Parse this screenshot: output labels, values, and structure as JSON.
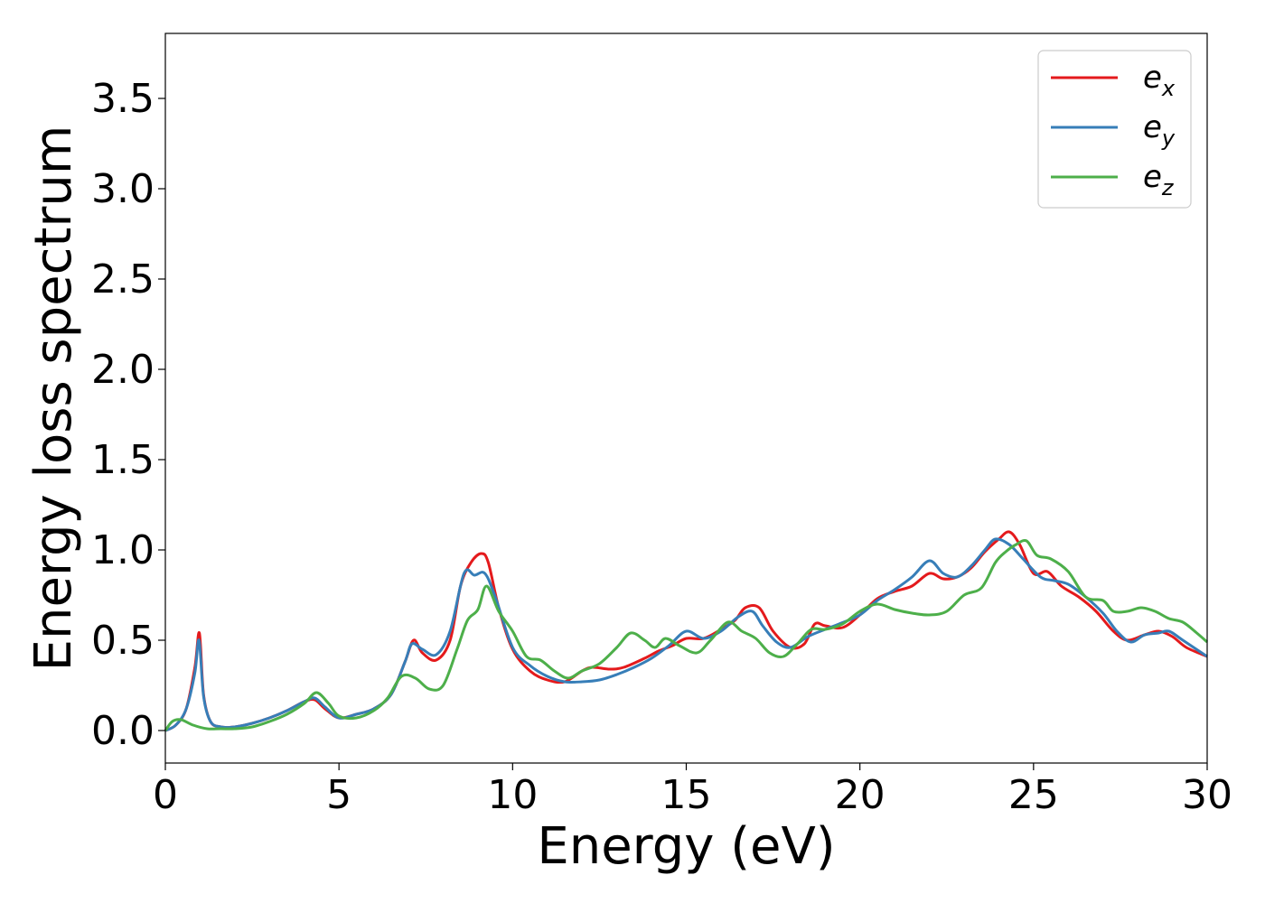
{
  "chart_data": {
    "type": "line",
    "xlabel": "Energy (eV)",
    "ylabel": "Energy loss spectrum",
    "xlim": [
      0,
      30
    ],
    "ylim": [
      -0.18,
      3.86
    ],
    "xticks": [
      0,
      5,
      10,
      15,
      20,
      25,
      30
    ],
    "yticks": [
      0.0,
      0.5,
      1.0,
      1.5,
      2.0,
      2.5,
      3.0,
      3.5
    ],
    "xtick_labels": [
      "0",
      "5",
      "10",
      "15",
      "20",
      "25",
      "30"
    ],
    "ytick_labels": [
      "0.0",
      "0.5",
      "1.0",
      "1.5",
      "2.0",
      "2.5",
      "3.0",
      "3.5"
    ],
    "grid": false,
    "legend_position": "top-right",
    "series": [
      {
        "name": "e_x",
        "legend_base": "e",
        "legend_sub": "x",
        "color": "#e41a1c",
        "points": [
          [
            0,
            0
          ],
          [
            0.3,
            0.03
          ],
          [
            0.6,
            0.12
          ],
          [
            0.85,
            0.35
          ],
          [
            0.98,
            0.54
          ],
          [
            1.1,
            0.2
          ],
          [
            1.3,
            0.05
          ],
          [
            1.6,
            0.02
          ],
          [
            2.0,
            0.02
          ],
          [
            2.5,
            0.04
          ],
          [
            3.0,
            0.07
          ],
          [
            3.5,
            0.11
          ],
          [
            4.0,
            0.16
          ],
          [
            4.3,
            0.17
          ],
          [
            4.6,
            0.12
          ],
          [
            5.0,
            0.07
          ],
          [
            5.5,
            0.09
          ],
          [
            6.0,
            0.12
          ],
          [
            6.5,
            0.2
          ],
          [
            6.9,
            0.38
          ],
          [
            7.15,
            0.5
          ],
          [
            7.4,
            0.43
          ],
          [
            7.8,
            0.39
          ],
          [
            8.2,
            0.5
          ],
          [
            8.5,
            0.8
          ],
          [
            8.8,
            0.93
          ],
          [
            9.1,
            0.98
          ],
          [
            9.3,
            0.93
          ],
          [
            9.6,
            0.68
          ],
          [
            10.0,
            0.45
          ],
          [
            10.5,
            0.33
          ],
          [
            11.0,
            0.28
          ],
          [
            11.5,
            0.27
          ],
          [
            12.0,
            0.33
          ],
          [
            12.3,
            0.35
          ],
          [
            12.8,
            0.34
          ],
          [
            13.2,
            0.35
          ],
          [
            13.8,
            0.4
          ],
          [
            14.2,
            0.44
          ],
          [
            14.6,
            0.47
          ],
          [
            15.0,
            0.51
          ],
          [
            15.5,
            0.51
          ],
          [
            16.0,
            0.56
          ],
          [
            16.4,
            0.61
          ],
          [
            16.7,
            0.68
          ],
          [
            17.1,
            0.68
          ],
          [
            17.5,
            0.55
          ],
          [
            18.0,
            0.46
          ],
          [
            18.4,
            0.48
          ],
          [
            18.7,
            0.59
          ],
          [
            19.0,
            0.58
          ],
          [
            19.5,
            0.57
          ],
          [
            20.0,
            0.64
          ],
          [
            20.5,
            0.73
          ],
          [
            21.0,
            0.77
          ],
          [
            21.5,
            0.8
          ],
          [
            22.0,
            0.87
          ],
          [
            22.4,
            0.84
          ],
          [
            22.8,
            0.85
          ],
          [
            23.2,
            0.9
          ],
          [
            23.6,
            0.99
          ],
          [
            24.0,
            1.06
          ],
          [
            24.3,
            1.1
          ],
          [
            24.6,
            1.03
          ],
          [
            25.0,
            0.87
          ],
          [
            25.4,
            0.88
          ],
          [
            25.8,
            0.8
          ],
          [
            26.3,
            0.74
          ],
          [
            26.8,
            0.66
          ],
          [
            27.3,
            0.55
          ],
          [
            27.7,
            0.5
          ],
          [
            28.2,
            0.53
          ],
          [
            28.6,
            0.55
          ],
          [
            29.0,
            0.52
          ],
          [
            29.4,
            0.46
          ],
          [
            30.0,
            0.41
          ]
        ]
      },
      {
        "name": "e_y",
        "legend_base": "e",
        "legend_sub": "y",
        "color": "#377eb8",
        "points": [
          [
            0,
            0
          ],
          [
            0.3,
            0.03
          ],
          [
            0.6,
            0.12
          ],
          [
            0.85,
            0.32
          ],
          [
            0.97,
            0.5
          ],
          [
            1.1,
            0.19
          ],
          [
            1.3,
            0.05
          ],
          [
            1.6,
            0.02
          ],
          [
            2.0,
            0.02
          ],
          [
            2.5,
            0.04
          ],
          [
            3.0,
            0.07
          ],
          [
            3.5,
            0.11
          ],
          [
            4.0,
            0.16
          ],
          [
            4.3,
            0.18
          ],
          [
            4.6,
            0.13
          ],
          [
            5.0,
            0.07
          ],
          [
            5.5,
            0.09
          ],
          [
            6.0,
            0.12
          ],
          [
            6.5,
            0.2
          ],
          [
            6.9,
            0.38
          ],
          [
            7.1,
            0.48
          ],
          [
            7.4,
            0.45
          ],
          [
            7.8,
            0.42
          ],
          [
            8.2,
            0.55
          ],
          [
            8.6,
            0.87
          ],
          [
            8.9,
            0.86
          ],
          [
            9.2,
            0.87
          ],
          [
            9.5,
            0.74
          ],
          [
            10.0,
            0.46
          ],
          [
            10.5,
            0.36
          ],
          [
            11.0,
            0.3
          ],
          [
            11.5,
            0.27
          ],
          [
            12.0,
            0.27
          ],
          [
            12.5,
            0.28
          ],
          [
            13.0,
            0.31
          ],
          [
            13.5,
            0.35
          ],
          [
            14.0,
            0.4
          ],
          [
            14.5,
            0.47
          ],
          [
            15.0,
            0.55
          ],
          [
            15.5,
            0.51
          ],
          [
            16.0,
            0.55
          ],
          [
            16.5,
            0.63
          ],
          [
            16.9,
            0.66
          ],
          [
            17.2,
            0.58
          ],
          [
            17.6,
            0.49
          ],
          [
            18.0,
            0.46
          ],
          [
            18.5,
            0.52
          ],
          [
            19.0,
            0.56
          ],
          [
            19.4,
            0.59
          ],
          [
            20.0,
            0.64
          ],
          [
            20.5,
            0.72
          ],
          [
            21.0,
            0.78
          ],
          [
            21.5,
            0.85
          ],
          [
            22.0,
            0.94
          ],
          [
            22.4,
            0.87
          ],
          [
            22.8,
            0.85
          ],
          [
            23.2,
            0.91
          ],
          [
            23.6,
            1.0
          ],
          [
            23.9,
            1.06
          ],
          [
            24.3,
            1.03
          ],
          [
            24.7,
            0.95
          ],
          [
            25.2,
            0.85
          ],
          [
            25.6,
            0.83
          ],
          [
            26.0,
            0.81
          ],
          [
            26.5,
            0.74
          ],
          [
            27.0,
            0.65
          ],
          [
            27.4,
            0.55
          ],
          [
            27.8,
            0.49
          ],
          [
            28.2,
            0.53
          ],
          [
            28.6,
            0.54
          ],
          [
            28.9,
            0.55
          ],
          [
            29.3,
            0.5
          ],
          [
            30.0,
            0.41
          ]
        ]
      },
      {
        "name": "e_z",
        "legend_base": "e",
        "legend_sub": "z",
        "color": "#4daf4a",
        "points": [
          [
            0,
            0
          ],
          [
            0.2,
            0.05
          ],
          [
            0.45,
            0.06
          ],
          [
            0.8,
            0.03
          ],
          [
            1.2,
            0.01
          ],
          [
            1.6,
            0.01
          ],
          [
            2.0,
            0.01
          ],
          [
            2.5,
            0.02
          ],
          [
            3.0,
            0.05
          ],
          [
            3.5,
            0.09
          ],
          [
            4.0,
            0.15
          ],
          [
            4.35,
            0.21
          ],
          [
            4.7,
            0.15
          ],
          [
            5.0,
            0.08
          ],
          [
            5.5,
            0.07
          ],
          [
            6.0,
            0.11
          ],
          [
            6.4,
            0.18
          ],
          [
            6.8,
            0.3
          ],
          [
            7.2,
            0.29
          ],
          [
            7.6,
            0.23
          ],
          [
            8.0,
            0.25
          ],
          [
            8.4,
            0.45
          ],
          [
            8.7,
            0.61
          ],
          [
            9.0,
            0.67
          ],
          [
            9.25,
            0.8
          ],
          [
            9.6,
            0.66
          ],
          [
            10.0,
            0.55
          ],
          [
            10.4,
            0.41
          ],
          [
            10.8,
            0.39
          ],
          [
            11.2,
            0.33
          ],
          [
            11.6,
            0.29
          ],
          [
            12.0,
            0.33
          ],
          [
            12.5,
            0.37
          ],
          [
            13.0,
            0.46
          ],
          [
            13.4,
            0.54
          ],
          [
            13.8,
            0.5
          ],
          [
            14.1,
            0.46
          ],
          [
            14.4,
            0.51
          ],
          [
            14.8,
            0.47
          ],
          [
            15.3,
            0.43
          ],
          [
            15.7,
            0.5
          ],
          [
            16.2,
            0.6
          ],
          [
            16.6,
            0.55
          ],
          [
            17.0,
            0.51
          ],
          [
            17.4,
            0.43
          ],
          [
            17.8,
            0.41
          ],
          [
            18.2,
            0.48
          ],
          [
            18.6,
            0.56
          ],
          [
            19.0,
            0.56
          ],
          [
            19.5,
            0.59
          ],
          [
            20.0,
            0.66
          ],
          [
            20.5,
            0.7
          ],
          [
            21.0,
            0.67
          ],
          [
            21.5,
            0.65
          ],
          [
            22.0,
            0.64
          ],
          [
            22.5,
            0.66
          ],
          [
            23.0,
            0.75
          ],
          [
            23.5,
            0.79
          ],
          [
            23.9,
            0.93
          ],
          [
            24.2,
            0.99
          ],
          [
            24.5,
            1.03
          ],
          [
            24.8,
            1.05
          ],
          [
            25.1,
            0.97
          ],
          [
            25.5,
            0.95
          ],
          [
            26.0,
            0.88
          ],
          [
            26.5,
            0.74
          ],
          [
            27.0,
            0.72
          ],
          [
            27.3,
            0.66
          ],
          [
            27.7,
            0.66
          ],
          [
            28.1,
            0.68
          ],
          [
            28.5,
            0.66
          ],
          [
            28.9,
            0.62
          ],
          [
            29.3,
            0.6
          ],
          [
            29.7,
            0.54
          ],
          [
            30.0,
            0.49
          ]
        ]
      }
    ]
  }
}
